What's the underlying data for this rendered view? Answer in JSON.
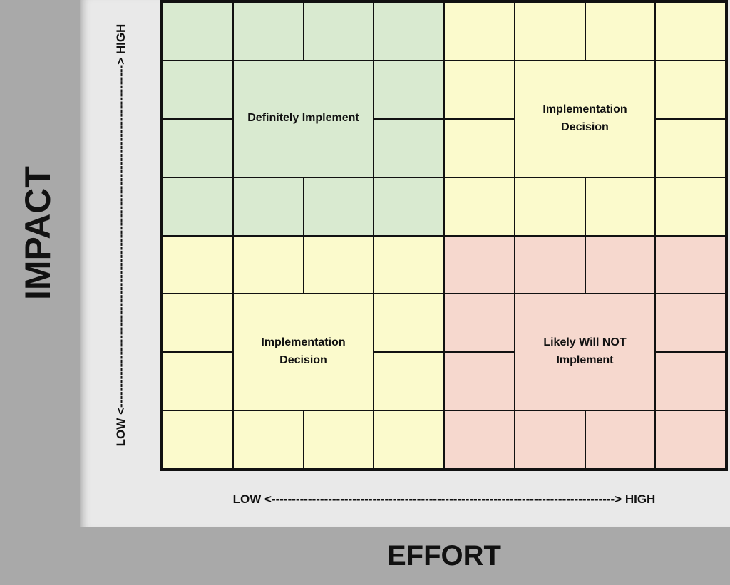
{
  "matrix": {
    "y_axis_title": "IMPACT",
    "x_axis_title": "EFFORT",
    "y_axis_label": "LOW <-------------------------------------------------------------------------------------> HIGH",
    "x_axis_label": "LOW <-------------------------------------------------------------------------------------> HIGH",
    "colors": {
      "green": "#d9ead0",
      "yellow": "#fbfacc",
      "red": "#f6d8ce",
      "grid_line": "#111111",
      "outer_band": "#a9a9a9",
      "inner_panel": "#e9e9e9",
      "text": "#111111"
    },
    "grid": {
      "columns": 8,
      "rows": 8
    },
    "quadrants": [
      {
        "position": "top-left",
        "color_name": "green",
        "label": "Definitely Implement"
      },
      {
        "position": "top-right",
        "color_name": "yellow",
        "label": "Implementation Decision"
      },
      {
        "position": "bottom-left",
        "color_name": "yellow",
        "label": "Implementation Decision"
      },
      {
        "position": "bottom-right",
        "color_name": "red",
        "label": "Likely Will NOT Implement"
      }
    ],
    "cells": [
      {
        "r": 1,
        "c": 1,
        "color": "green"
      },
      {
        "r": 1,
        "c": 2,
        "color": "green"
      },
      {
        "r": 1,
        "c": 3,
        "color": "green"
      },
      {
        "r": 1,
        "c": 4,
        "color": "green"
      },
      {
        "r": 1,
        "c": 5,
        "color": "yellow"
      },
      {
        "r": 1,
        "c": 6,
        "color": "yellow"
      },
      {
        "r": 1,
        "c": 7,
        "color": "yellow"
      },
      {
        "r": 1,
        "c": 8,
        "color": "yellow"
      },
      {
        "r": 2,
        "c": 1,
        "color": "green"
      },
      {
        "r": 2,
        "c": 2,
        "rs": 2,
        "cs": 2,
        "color": "green",
        "label": "Definitely Implement",
        "name": "quadrant-label-top-left"
      },
      {
        "r": 2,
        "c": 4,
        "color": "green"
      },
      {
        "r": 2,
        "c": 5,
        "color": "yellow"
      },
      {
        "r": 2,
        "c": 6,
        "rs": 2,
        "cs": 2,
        "color": "yellow",
        "label": "Implementation\nDecision",
        "name": "quadrant-label-top-right"
      },
      {
        "r": 2,
        "c": 8,
        "color": "yellow"
      },
      {
        "r": 3,
        "c": 1,
        "color": "green"
      },
      {
        "r": 3,
        "c": 4,
        "color": "green"
      },
      {
        "r": 3,
        "c": 5,
        "color": "yellow"
      },
      {
        "r": 3,
        "c": 8,
        "color": "yellow"
      },
      {
        "r": 4,
        "c": 1,
        "color": "green"
      },
      {
        "r": 4,
        "c": 2,
        "color": "green"
      },
      {
        "r": 4,
        "c": 3,
        "color": "green"
      },
      {
        "r": 4,
        "c": 4,
        "color": "green"
      },
      {
        "r": 4,
        "c": 5,
        "color": "yellow"
      },
      {
        "r": 4,
        "c": 6,
        "color": "yellow"
      },
      {
        "r": 4,
        "c": 7,
        "color": "yellow"
      },
      {
        "r": 4,
        "c": 8,
        "color": "yellow"
      },
      {
        "r": 5,
        "c": 1,
        "color": "yellow"
      },
      {
        "r": 5,
        "c": 2,
        "color": "yellow"
      },
      {
        "r": 5,
        "c": 3,
        "color": "yellow"
      },
      {
        "r": 5,
        "c": 4,
        "color": "yellow"
      },
      {
        "r": 5,
        "c": 5,
        "color": "red"
      },
      {
        "r": 5,
        "c": 6,
        "color": "red"
      },
      {
        "r": 5,
        "c": 7,
        "color": "red"
      },
      {
        "r": 5,
        "c": 8,
        "color": "red"
      },
      {
        "r": 6,
        "c": 1,
        "color": "yellow"
      },
      {
        "r": 6,
        "c": 2,
        "rs": 2,
        "cs": 2,
        "color": "yellow",
        "label": "Implementation\nDecision",
        "name": "quadrant-label-bottom-left"
      },
      {
        "r": 6,
        "c": 4,
        "color": "yellow"
      },
      {
        "r": 6,
        "c": 5,
        "color": "red"
      },
      {
        "r": 6,
        "c": 6,
        "rs": 2,
        "cs": 2,
        "color": "red",
        "label": "Likely Will NOT\nImplement",
        "name": "quadrant-label-bottom-right"
      },
      {
        "r": 6,
        "c": 8,
        "color": "red"
      },
      {
        "r": 7,
        "c": 1,
        "color": "yellow"
      },
      {
        "r": 7,
        "c": 4,
        "color": "yellow"
      },
      {
        "r": 7,
        "c": 5,
        "color": "red"
      },
      {
        "r": 7,
        "c": 8,
        "color": "red"
      },
      {
        "r": 8,
        "c": 1,
        "color": "yellow"
      },
      {
        "r": 8,
        "c": 2,
        "color": "yellow"
      },
      {
        "r": 8,
        "c": 3,
        "color": "yellow"
      },
      {
        "r": 8,
        "c": 4,
        "color": "yellow"
      },
      {
        "r": 8,
        "c": 5,
        "color": "red"
      },
      {
        "r": 8,
        "c": 6,
        "color": "red"
      },
      {
        "r": 8,
        "c": 7,
        "color": "red"
      },
      {
        "r": 8,
        "c": 8,
        "color": "red"
      }
    ]
  }
}
